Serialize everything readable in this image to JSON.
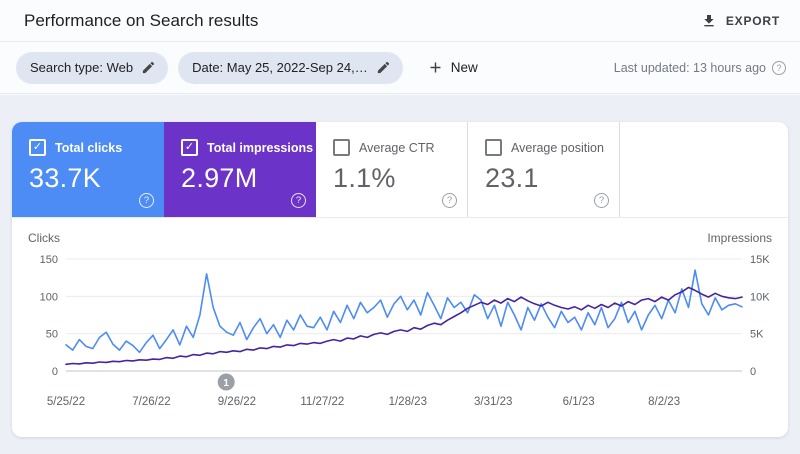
{
  "header": {
    "title": "Performance on Search results",
    "export_label": "EXPORT"
  },
  "filters": {
    "chips": [
      {
        "label": "Search type: Web"
      },
      {
        "label": "Date: May 25, 2022-Sep 24,…"
      }
    ],
    "new_label": "New",
    "last_updated": "Last updated: 13 hours ago"
  },
  "metrics": [
    {
      "label": "Total clicks",
      "value": "33.7K",
      "checked": true,
      "color": "#4d8bf5"
    },
    {
      "label": "Total impressions",
      "value": "2.97M",
      "checked": true,
      "color": "#6c33c8"
    },
    {
      "label": "Average CTR",
      "value": "1.1%",
      "checked": false,
      "color": ""
    },
    {
      "label": "Average position",
      "value": "23.1",
      "checked": false,
      "color": ""
    }
  ],
  "chart_data": {
    "type": "line",
    "left_axis": {
      "label": "Clicks",
      "max": 150,
      "ticks": [
        {
          "label": "150",
          "value": 150
        },
        {
          "label": "100",
          "value": 100
        },
        {
          "label": "50",
          "value": 50
        },
        {
          "label": "0",
          "value": 0
        }
      ]
    },
    "right_axis": {
      "label": "Impressions",
      "max": 15000,
      "ticks": [
        {
          "label": "15K",
          "value": 15000
        },
        {
          "label": "10K",
          "value": 10000
        },
        {
          "label": "5K",
          "value": 5000
        },
        {
          "label": "0",
          "value": 0
        }
      ]
    },
    "x_ticks": [
      "5/25/22",
      "7/26/22",
      "9/26/22",
      "11/27/22",
      "1/28/23",
      "3/31/23",
      "6/1/23",
      "8/2/23"
    ],
    "annotation_marker": {
      "label": "1",
      "x_fraction": 0.237
    },
    "series": [
      {
        "name": "Total clicks",
        "axis": "left",
        "color": "#4d8bf5",
        "values": [
          35,
          28,
          42,
          33,
          30,
          45,
          52,
          36,
          28,
          40,
          34,
          25,
          38,
          48,
          30,
          42,
          55,
          35,
          60,
          45,
          75,
          130,
          85,
          60,
          52,
          48,
          65,
          42,
          58,
          70,
          50,
          62,
          45,
          68,
          55,
          75,
          60,
          58,
          72,
          55,
          80,
          65,
          88,
          70,
          92,
          78,
          85,
          95,
          72,
          90,
          100,
          82,
          95,
          75,
          105,
          88,
          70,
          98,
          85,
          92,
          78,
          102,
          95,
          70,
          88,
          60,
          92,
          75,
          55,
          85,
          68,
          90,
          72,
          58,
          80,
          65,
          72,
          55,
          78,
          62,
          85,
          58,
          70,
          92,
          65,
          80,
          55,
          75,
          88,
          70,
          95,
          78,
          110,
          85,
          135,
          90,
          75,
          98,
          82,
          88,
          90,
          86
        ]
      },
      {
        "name": "Total impressions",
        "axis": "right",
        "color": "#44259e",
        "values": [
          900,
          1000,
          950,
          1100,
          1050,
          1200,
          1150,
          1300,
          1250,
          1400,
          1350,
          1500,
          1450,
          1600,
          1550,
          1800,
          1700,
          2000,
          1900,
          2200,
          2100,
          2400,
          2300,
          2600,
          2500,
          2700,
          2600,
          2900,
          2800,
          3100,
          3000,
          3300,
          3200,
          3500,
          3400,
          3700,
          3600,
          3800,
          3700,
          4000,
          4200,
          4000,
          4400,
          4300,
          4700,
          4500,
          4900,
          5100,
          4900,
          5300,
          5500,
          5300,
          5800,
          5600,
          6100,
          6400,
          6200,
          6800,
          7300,
          7800,
          8400,
          8800,
          9200,
          8900,
          9500,
          9100,
          9700,
          9300,
          9900,
          9400,
          9000,
          8700,
          9200,
          8800,
          8500,
          8300,
          8600,
          8200,
          8800,
          8400,
          8900,
          8500,
          9100,
          8700,
          9300,
          8900,
          9500,
          9700,
          9300,
          9900,
          9500,
          10200,
          10600,
          11200,
          10800,
          10300,
          9900,
          10400,
          10000,
          9800,
          9700,
          9900
        ]
      }
    ]
  }
}
